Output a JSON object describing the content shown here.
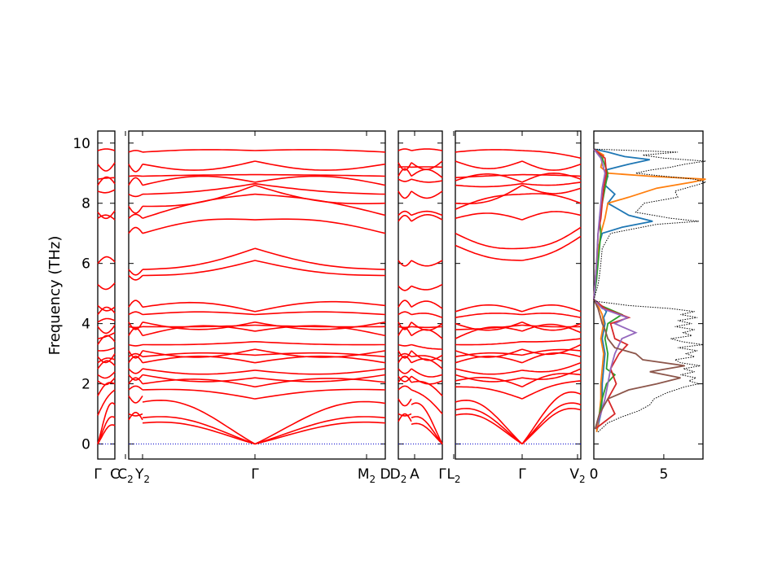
{
  "chart_data": {
    "type": "line",
    "title": "",
    "ylabel": "Frequency (THz)",
    "ylim": [
      -0.5,
      10.4
    ],
    "yticks": [
      0,
      2,
      4,
      6,
      8,
      10
    ],
    "grid": false,
    "band_color": "#ff0000",
    "zero_line_color": "#0000cc",
    "band_xlabels": [
      {
        "text": "Γ",
        "sub": ""
      },
      {
        "text": "C",
        "sub": ""
      },
      {
        "text": "C",
        "sub": "2"
      },
      {
        "text": "Y",
        "sub": "2"
      },
      {
        "text": "Γ",
        "sub": ""
      },
      {
        "text": "M",
        "sub": "2"
      },
      {
        "text": "D",
        "sub": ""
      },
      {
        "text": "D",
        "sub": "2"
      },
      {
        "text": "A",
        "sub": ""
      },
      {
        "text": "Γ",
        "sub": ""
      },
      {
        "text": "L",
        "sub": "2"
      },
      {
        "text": "Γ",
        "sub": ""
      },
      {
        "text": "V",
        "sub": "2"
      }
    ],
    "segments": [
      {
        "from": "Γ",
        "to": "C",
        "start_freqs": [
          0,
          0,
          0,
          0.95,
          1.6,
          2.1,
          2.3,
          2.5,
          2.7,
          2.9,
          3.1,
          3.3,
          3.5,
          3.9,
          4.05,
          4.3,
          4.6,
          5.3,
          6.0,
          7.5,
          7.7,
          8.4,
          8.6,
          8.8,
          9.3,
          9.75
        ],
        "end_freqs": [
          0.7,
          1.0,
          1.5,
          1.8,
          2.0,
          2.2,
          2.4,
          2.6,
          2.8,
          3.0,
          3.2,
          3.4,
          3.7,
          3.95,
          4.1,
          4.35,
          4.55,
          5.35,
          6.05,
          7.45,
          7.75,
          8.45,
          8.65,
          8.85,
          9.35,
          9.75
        ]
      },
      {
        "from": "C2",
        "to": "Y2",
        "start_freqs": [
          0.8,
          1.0,
          1.6,
          1.8,
          2.0,
          2.3,
          2.5,
          2.7,
          2.9,
          3.1,
          3.3,
          3.6,
          3.9,
          4.05,
          4.3,
          4.55,
          5.6,
          5.8,
          7.0,
          7.5,
          7.9,
          8.3,
          8.6,
          8.9,
          9.3,
          9.7
        ],
        "end_freqs": [
          0.8,
          1.0,
          1.6,
          1.8,
          2.0,
          2.3,
          2.5,
          2.7,
          2.9,
          3.1,
          3.3,
          3.6,
          3.9,
          4.05,
          4.3,
          4.55,
          5.6,
          5.8,
          7.0,
          7.5,
          7.9,
          8.3,
          8.6,
          8.9,
          9.3,
          9.7
        ]
      },
      {
        "from": "Y2",
        "to": "Γ",
        "start_freqs": [
          0.8,
          1.0,
          1.6,
          1.8,
          2.0,
          2.3,
          2.5,
          2.7,
          2.9,
          3.1,
          3.3,
          3.6,
          3.9,
          4.05,
          4.3,
          4.55,
          5.6,
          5.8,
          7.0,
          7.5,
          7.9,
          8.3,
          8.6,
          8.9,
          9.3,
          9.7
        ],
        "end_freqs": [
          0,
          0,
          0,
          1.5,
          1.9,
          2.2,
          2.45,
          2.7,
          2.95,
          3.15,
          3.4,
          3.75,
          3.95,
          4.05,
          4.3,
          4.4,
          6.1,
          6.5,
          7.45,
          8.3,
          8.6,
          8.65,
          8.7,
          8.95,
          9.4,
          9.75
        ]
      },
      {
        "from": "Γ",
        "to": "M2",
        "start_freqs": [
          0,
          0,
          0,
          1.5,
          1.9,
          2.2,
          2.45,
          2.7,
          2.95,
          3.15,
          3.4,
          3.75,
          3.95,
          4.05,
          4.3,
          4.4,
          6.1,
          6.5,
          7.45,
          8.3,
          8.6,
          8.65,
          8.7,
          8.95,
          9.4,
          9.75
        ],
        "end_freqs": [
          0.8,
          1.0,
          1.55,
          1.8,
          2.05,
          2.3,
          2.5,
          2.7,
          2.9,
          3.1,
          3.3,
          3.6,
          3.9,
          4.05,
          4.3,
          4.6,
          5.6,
          5.8,
          7.0,
          7.6,
          8.0,
          8.3,
          8.6,
          8.9,
          9.3,
          9.7
        ]
      },
      {
        "from": "D2",
        "to": "A",
        "start_freqs": [
          0.75,
          1.0,
          1.5,
          1.8,
          2.05,
          2.25,
          2.5,
          2.7,
          2.9,
          3.1,
          3.3,
          3.6,
          3.9,
          4.05,
          4.3,
          4.55,
          5.25,
          6.1,
          7.4,
          7.6,
          8.4,
          8.8,
          8.9,
          9.2,
          9.35,
          9.75
        ],
        "end_freqs": [
          0.75,
          1.0,
          1.5,
          1.8,
          2.05,
          2.25,
          2.5,
          2.7,
          2.9,
          3.1,
          3.3,
          3.6,
          3.9,
          4.05,
          4.3,
          4.55,
          5.25,
          6.1,
          7.4,
          7.6,
          8.4,
          8.8,
          8.9,
          9.2,
          9.35,
          9.75
        ]
      },
      {
        "from": "A",
        "to": "Γ",
        "start_freqs": [
          0.75,
          1.0,
          1.5,
          1.8,
          2.05,
          2.25,
          2.5,
          2.7,
          2.9,
          3.1,
          3.3,
          3.6,
          3.9,
          4.05,
          4.3,
          4.55,
          5.25,
          6.1,
          7.4,
          7.6,
          8.4,
          8.8,
          8.9,
          9.2,
          9.35,
          9.75
        ],
        "end_freqs": [
          0,
          0,
          0,
          1.0,
          1.6,
          2.1,
          2.3,
          2.5,
          2.75,
          2.95,
          3.15,
          3.5,
          3.9,
          4.0,
          4.2,
          4.5,
          5.3,
          6.1,
          7.45,
          7.6,
          8.4,
          8.75,
          8.85,
          9.2,
          9.4,
          9.75
        ]
      },
      {
        "from": "L2",
        "to": "Γ",
        "start_freqs": [
          1.1,
          1.3,
          1.6,
          1.9,
          2.1,
          2.3,
          2.5,
          2.7,
          2.9,
          3.1,
          3.3,
          3.5,
          3.8,
          4.0,
          4.2,
          4.4,
          6.6,
          7.0,
          7.5,
          7.8,
          8.0,
          8.6,
          8.75,
          8.85,
          9.4,
          9.7
        ],
        "end_freqs": [
          0,
          0,
          0,
          1.5,
          1.9,
          2.2,
          2.45,
          2.7,
          2.95,
          3.15,
          3.4,
          3.75,
          3.95,
          4.05,
          4.3,
          4.4,
          6.1,
          6.5,
          7.45,
          8.3,
          8.6,
          8.65,
          8.7,
          8.95,
          9.4,
          9.75
        ]
      },
      {
        "from": "Γ",
        "to": "V2",
        "start_freqs": [
          0,
          0,
          0,
          1.5,
          1.9,
          2.2,
          2.45,
          2.7,
          2.95,
          3.15,
          3.4,
          3.75,
          3.95,
          4.05,
          4.3,
          4.4,
          6.1,
          6.5,
          7.45,
          8.3,
          8.6,
          8.65,
          8.7,
          8.95,
          9.4,
          9.75
        ],
        "end_freqs": [
          1.3,
          1.5,
          1.9,
          2.1,
          2.3,
          2.5,
          2.7,
          2.9,
          3.1,
          3.3,
          3.5,
          3.7,
          3.9,
          4.0,
          4.2,
          4.4,
          6.9,
          7.2,
          7.6,
          8.0,
          8.5,
          8.7,
          8.8,
          8.9,
          9.3,
          9.5
        ]
      }
    ],
    "dos": {
      "xlim": [
        0,
        7.8
      ],
      "xticks": [
        0,
        5
      ],
      "total": {
        "freqs": [
          0.4,
          0.7,
          0.9,
          1.1,
          1.3,
          1.5,
          1.7,
          1.9,
          2.0,
          2.1,
          2.2,
          2.3,
          2.4,
          2.5,
          2.6,
          2.7,
          2.8,
          2.9,
          3.0,
          3.1,
          3.2,
          3.3,
          3.4,
          3.5,
          3.6,
          3.7,
          3.8,
          3.9,
          4.0,
          4.1,
          4.2,
          4.3,
          4.4,
          4.5,
          4.6,
          4.75,
          4.8,
          5.3,
          5.6,
          6.0,
          6.5,
          7.0,
          7.3,
          7.4,
          7.5,
          7.7,
          8.0,
          8.2,
          8.4,
          8.6,
          8.7,
          8.8,
          8.9,
          9.0,
          9.1,
          9.2,
          9.3,
          9.4,
          9.5,
          9.6,
          9.7,
          9.8
        ],
        "values": [
          0.3,
          1.0,
          2.0,
          3.2,
          4.0,
          4.3,
          5.2,
          6.5,
          7.5,
          6.8,
          7.3,
          6.2,
          7.2,
          6.4,
          7.6,
          6.2,
          5.8,
          7.2,
          6.6,
          7.4,
          6.0,
          7.8,
          6.3,
          5.5,
          7.0,
          6.4,
          7.2,
          5.8,
          7.0,
          6.0,
          7.4,
          6.2,
          7.2,
          5.5,
          2.5,
          0,
          0,
          0.3,
          0.4,
          0.5,
          0.6,
          1.2,
          4.5,
          7.5,
          5.5,
          3.0,
          3.6,
          6.0,
          5.8,
          7.3,
          8.0,
          7.2,
          5.0,
          3.0,
          4.0,
          5.5,
          6.5,
          8.0,
          5.0,
          3.5,
          6.0,
          0
        ]
      },
      "partials": [
        {
          "color": "#1f77b4",
          "freqs": [
            0.4,
            1.0,
            1.5,
            2.0,
            2.5,
            3.0,
            3.5,
            4.0,
            4.2,
            4.4,
            4.7,
            4.8,
            5.5,
            6.0,
            6.5,
            7.0,
            7.2,
            7.4,
            7.6,
            8.0,
            8.3,
            8.6,
            8.9,
            9.1,
            9.3,
            9.45,
            9.55,
            9.7,
            9.8
          ],
          "values": [
            0.2,
            0.5,
            0.6,
            0.6,
            0.7,
            0.8,
            0.6,
            0.8,
            0.7,
            0.9,
            0.3,
            0,
            0.2,
            0.2,
            0.3,
            0.6,
            2.0,
            4.2,
            2.5,
            1.0,
            1.5,
            0.8,
            1.0,
            0.8,
            2.5,
            4.0,
            2.2,
            1.0,
            0
          ]
        },
        {
          "color": "#ff7f0e",
          "freqs": [
            0.4,
            1.0,
            1.5,
            2.0,
            2.5,
            3.0,
            3.5,
            4.0,
            4.3,
            4.7,
            4.8,
            6.0,
            7.0,
            7.5,
            8.0,
            8.2,
            8.5,
            8.7,
            8.8,
            8.9,
            9.0,
            9.2,
            9.6,
            9.8
          ],
          "values": [
            0.2,
            0.4,
            0.5,
            0.5,
            0.6,
            0.7,
            0.5,
            0.7,
            0.6,
            0.2,
            0,
            0.2,
            0.5,
            0.8,
            1.0,
            2.5,
            4.5,
            7.0,
            8.0,
            4.0,
            1.0,
            0.5,
            0.7,
            0
          ]
        },
        {
          "color": "#2ca02c",
          "freqs": [
            0.5,
            1.0,
            1.5,
            2.0,
            2.3,
            2.5,
            3.0,
            3.5,
            4.0,
            4.3,
            4.6,
            4.8,
            5.5,
            6.0,
            6.5,
            7.0,
            7.5,
            8.0,
            8.5,
            9.0,
            9.5,
            9.8
          ],
          "values": [
            0.1,
            0.4,
            0.6,
            0.9,
            1.5,
            0.9,
            1.0,
            0.8,
            1.0,
            2.0,
            0.5,
            0,
            0.2,
            0.3,
            0.4,
            0.5,
            0.4,
            0.6,
            0.8,
            1.0,
            0.6,
            0
          ]
        },
        {
          "color": "#d62728",
          "freqs": [
            0.5,
            1.0,
            1.5,
            2.0,
            2.5,
            3.0,
            3.3,
            3.5,
            4.0,
            4.2,
            4.5,
            4.8,
            6.0,
            7.0,
            7.5,
            8.0,
            8.5,
            9.0,
            9.5,
            9.8
          ],
          "values": [
            0.1,
            1.5,
            1.0,
            1.6,
            1.2,
            1.8,
            2.4,
            1.5,
            1.2,
            2.5,
            0.8,
            0,
            0.2,
            0.3,
            0.5,
            0.6,
            0.7,
            0.9,
            0.8,
            0
          ]
        },
        {
          "color": "#9467bd",
          "freqs": [
            0.5,
            1.0,
            1.5,
            2.0,
            2.5,
            3.0,
            3.5,
            3.7,
            4.0,
            4.2,
            4.5,
            4.8,
            6.0,
            7.0,
            7.5,
            8.0,
            8.5,
            9.0,
            9.5,
            9.8
          ],
          "values": [
            0.1,
            0.5,
            0.8,
            1.0,
            1.2,
            1.5,
            2.0,
            3.0,
            1.5,
            2.4,
            0.6,
            0,
            0.2,
            0.3,
            0.4,
            0.5,
            0.6,
            0.8,
            0.5,
            0
          ]
        },
        {
          "color": "#8c564b",
          "freqs": [
            0.5,
            1.0,
            1.5,
            1.8,
            2.0,
            2.2,
            2.4,
            2.6,
            2.8,
            3.0,
            3.2,
            3.5,
            3.8,
            4.0,
            4.5,
            4.8
          ],
          "values": [
            0.1,
            0.4,
            1.0,
            2.5,
            4.5,
            6.2,
            4.0,
            6.5,
            3.5,
            3.0,
            1.5,
            1.0,
            0.8,
            0.6,
            0.3,
            0
          ]
        }
      ]
    }
  }
}
